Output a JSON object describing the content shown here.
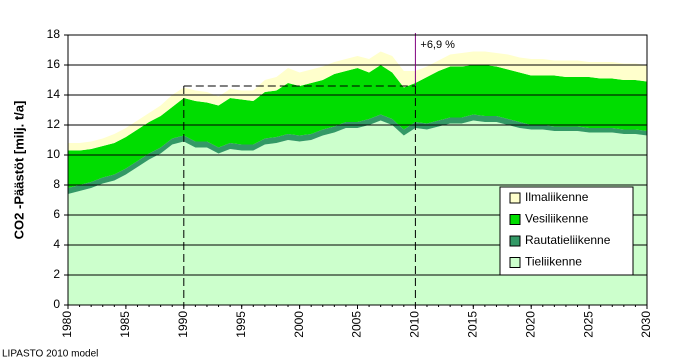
{
  "chart_data": {
    "type": "stacked_area",
    "y_label": "CO2 -Päästöt [milj. t/a]",
    "annotation": "+6,9 %",
    "source": "LIPASTO 2010 model",
    "x": [
      1980,
      1981,
      1982,
      1983,
      1984,
      1985,
      1986,
      1987,
      1988,
      1989,
      1990,
      1991,
      1992,
      1993,
      1994,
      1995,
      1996,
      1997,
      1998,
      1999,
      2000,
      2001,
      2002,
      2003,
      2004,
      2005,
      2006,
      2007,
      2008,
      2009,
      2010,
      2011,
      2012,
      2013,
      2014,
      2015,
      2016,
      2017,
      2018,
      2019,
      2020,
      2021,
      2022,
      2023,
      2024,
      2025,
      2026,
      2027,
      2028,
      2029,
      2030
    ],
    "series": [
      {
        "name": "Tieliikenne",
        "color": "#ccffcc",
        "values": [
          7.4,
          7.6,
          7.8,
          8.1,
          8.3,
          8.7,
          9.2,
          9.7,
          10.1,
          10.7,
          10.9,
          10.5,
          10.5,
          10.1,
          10.4,
          10.3,
          10.3,
          10.7,
          10.8,
          11.0,
          10.9,
          11.0,
          11.3,
          11.5,
          11.8,
          11.8,
          12.0,
          12.3,
          12.0,
          11.3,
          11.8,
          11.7,
          11.9,
          12.1,
          12.1,
          12.3,
          12.2,
          12.2,
          12.0,
          11.8,
          11.7,
          11.7,
          11.6,
          11.6,
          11.6,
          11.5,
          11.5,
          11.5,
          11.4,
          11.4,
          11.3
        ]
      },
      {
        "name": "Rautatieliikenne",
        "color": "#339966",
        "values": [
          0.4,
          0.4,
          0.4,
          0.4,
          0.4,
          0.4,
          0.4,
          0.4,
          0.4,
          0.4,
          0.4,
          0.4,
          0.4,
          0.4,
          0.4,
          0.4,
          0.4,
          0.4,
          0.4,
          0.4,
          0.4,
          0.4,
          0.4,
          0.4,
          0.4,
          0.4,
          0.4,
          0.4,
          0.4,
          0.4,
          0.4,
          0.4,
          0.4,
          0.4,
          0.4,
          0.4,
          0.4,
          0.4,
          0.4,
          0.4,
          0.3,
          0.3,
          0.3,
          0.3,
          0.3,
          0.3,
          0.3,
          0.3,
          0.3,
          0.3,
          0.3
        ]
      },
      {
        "name": "Vesiliikenne",
        "color": "#00dd00",
        "values": [
          2.5,
          2.3,
          2.2,
          2.1,
          2.1,
          2.1,
          2.1,
          2.1,
          2.1,
          2.1,
          2.5,
          2.7,
          2.6,
          2.8,
          3.0,
          3.0,
          2.9,
          3.1,
          3.1,
          3.4,
          3.3,
          3.4,
          3.3,
          3.5,
          3.4,
          3.6,
          3.1,
          3.3,
          3.1,
          2.8,
          2.6,
          3.1,
          3.3,
          3.4,
          3.4,
          3.3,
          3.4,
          3.3,
          3.3,
          3.3,
          3.3,
          3.3,
          3.4,
          3.3,
          3.3,
          3.4,
          3.3,
          3.3,
          3.3,
          3.3,
          3.3
        ]
      },
      {
        "name": "Ilmaliikenne",
        "color": "#ffffcc",
        "values": [
          0.5,
          0.5,
          0.5,
          0.5,
          0.6,
          0.6,
          0.6,
          0.6,
          0.7,
          0.8,
          0.7,
          0.7,
          0.7,
          0.6,
          0.6,
          0.6,
          0.7,
          0.8,
          0.9,
          1.0,
          0.9,
          0.9,
          0.9,
          0.8,
          0.8,
          0.8,
          0.9,
          0.9,
          1.1,
          1.1,
          0.8,
          0.7,
          0.7,
          0.8,
          0.9,
          0.9,
          0.9,
          0.9,
          1.0,
          1.0,
          1.1,
          1.1,
          1.0,
          1.1,
          1.1,
          1.0,
          1.1,
          1.1,
          1.1,
          1.1,
          1.1
        ]
      }
    ],
    "xlim": [
      1980,
      2030
    ],
    "xticks": [
      1980,
      1985,
      1990,
      1995,
      2000,
      2005,
      2010,
      2015,
      2020,
      2025,
      2030
    ],
    "ylim": [
      0,
      18
    ],
    "yticks": [
      0,
      2,
      4,
      6,
      8,
      10,
      12,
      14,
      16,
      18
    ],
    "grid": true,
    "reference_x": [
      1990,
      2010
    ],
    "reference_y": 14.6,
    "legend": "lower right"
  }
}
